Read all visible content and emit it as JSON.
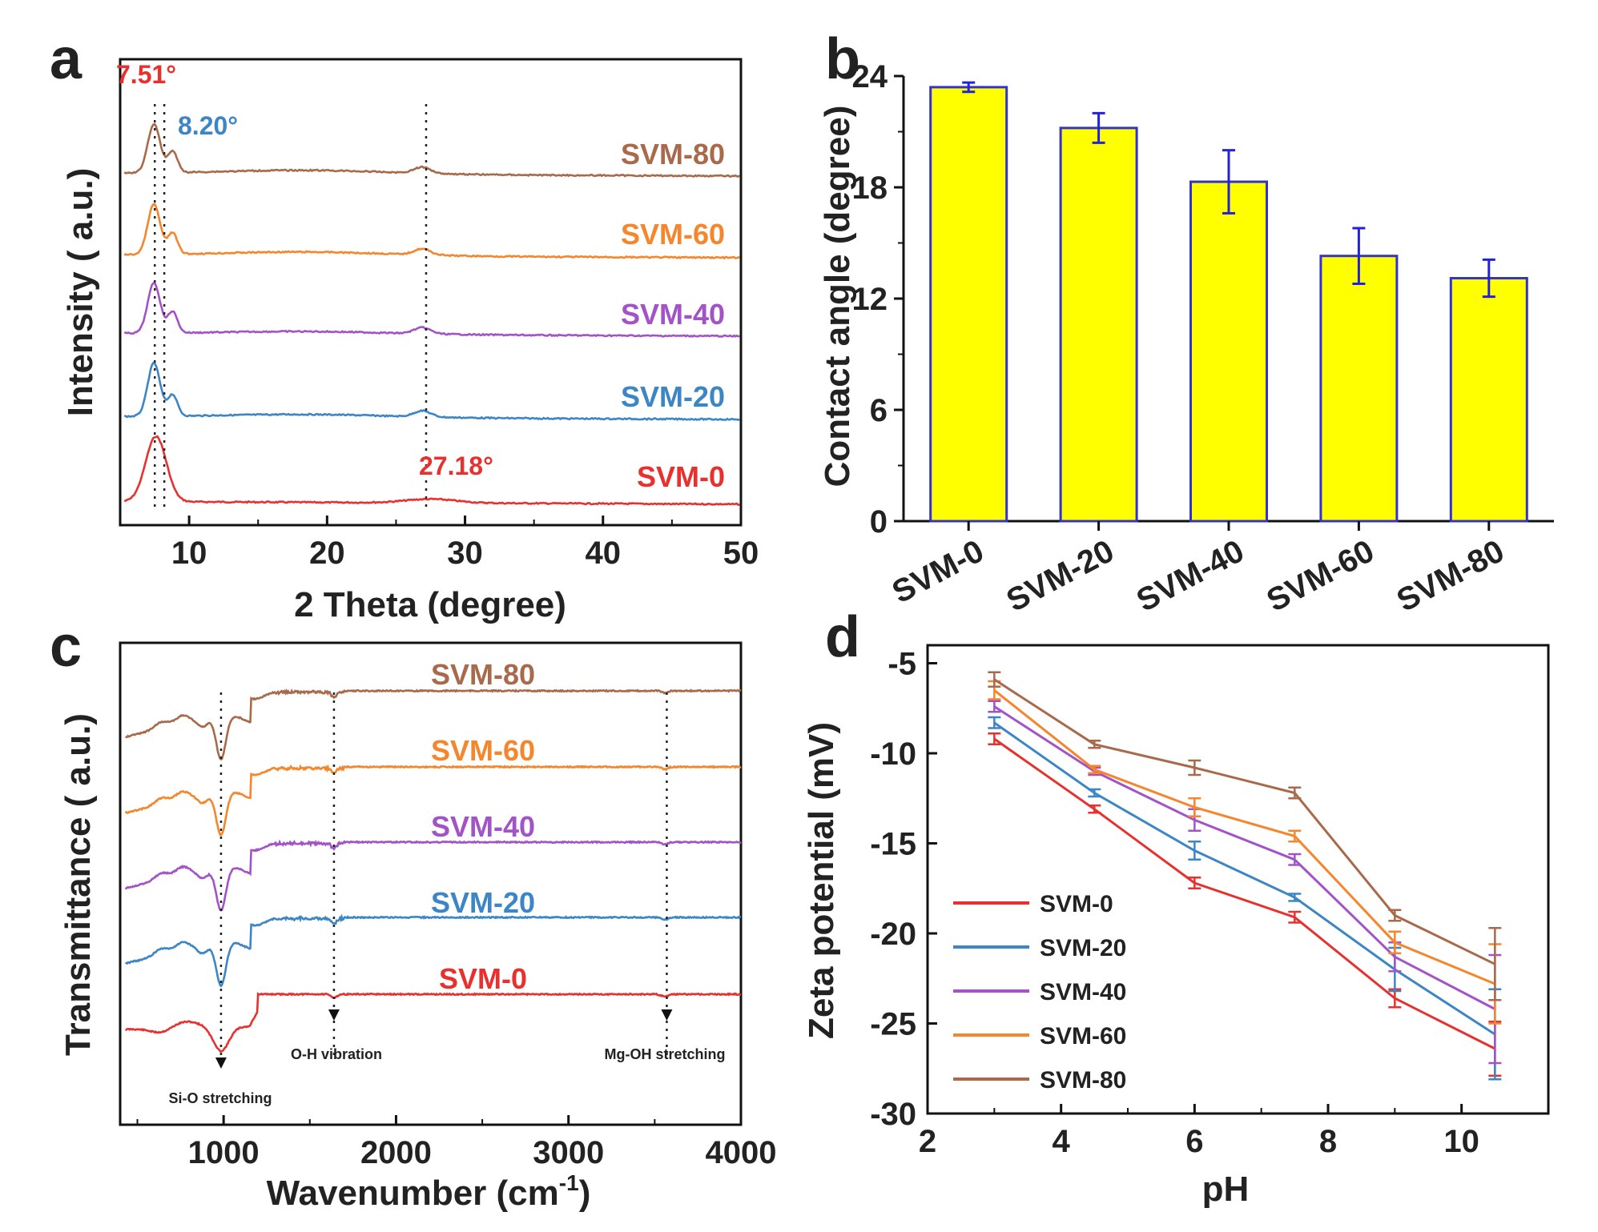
{
  "chart_data": [
    {
      "panel": "a",
      "type": "line",
      "title": "",
      "xlabel": "2 Theta (degree)",
      "ylabel": "Intensity ( a.u.)",
      "xlim": [
        5,
        50
      ],
      "xticks": [
        "10",
        "20",
        "30",
        "40",
        "50"
      ],
      "peak_markers": [
        {
          "x": 7.51,
          "label": "7.51°",
          "color": "#e8312f"
        },
        {
          "x": 8.2,
          "label": "8.20°",
          "color": "#3d86c6"
        },
        {
          "x": 27.18,
          "label": "27.18°",
          "color": "#e8312f"
        }
      ],
      "series": [
        {
          "name": "SVM-0",
          "color": "#e8312f",
          "offset": 0,
          "peaks": [
            {
              "x": 7.6,
              "h": 4.3,
              "w": 0.75
            },
            {
              "x": 27.5,
              "h": 0.25,
              "w": 1.8
            }
          ]
        },
        {
          "name": "SVM-20",
          "color": "#3d86c6",
          "offset": 1,
          "peaks": [
            {
              "x": 7.45,
              "h": 3.5,
              "w": 0.45
            },
            {
              "x": 8.8,
              "h": 1.4,
              "w": 0.35
            },
            {
              "x": 18.5,
              "h": 0.2,
              "w": 6.0
            },
            {
              "x": 26.9,
              "h": 0.4,
              "w": 0.6
            }
          ]
        },
        {
          "name": "SVM-40",
          "color": "#a353c8",
          "offset": 2,
          "peaks": [
            {
              "x": 7.45,
              "h": 3.3,
              "w": 0.45
            },
            {
              "x": 8.8,
              "h": 1.4,
              "w": 0.35
            },
            {
              "x": 18.5,
              "h": 0.18,
              "w": 6.0
            },
            {
              "x": 26.9,
              "h": 0.4,
              "w": 0.6
            }
          ]
        },
        {
          "name": "SVM-60",
          "color": "#f5862c",
          "offset": 3,
          "peaks": [
            {
              "x": 7.45,
              "h": 3.3,
              "w": 0.45
            },
            {
              "x": 8.8,
              "h": 1.4,
              "w": 0.35
            },
            {
              "x": 18.5,
              "h": 0.25,
              "w": 6.0
            },
            {
              "x": 26.9,
              "h": 0.4,
              "w": 0.6
            }
          ]
        },
        {
          "name": "SVM-80",
          "color": "#a86a4a",
          "offset": 4,
          "peaks": [
            {
              "x": 7.45,
              "h": 3.2,
              "w": 0.45
            },
            {
              "x": 8.8,
              "h": 1.4,
              "w": 0.35
            },
            {
              "x": 18.5,
              "h": 0.25,
              "w": 6.0
            },
            {
              "x": 26.9,
              "h": 0.4,
              "w": 0.6
            }
          ]
        }
      ]
    },
    {
      "panel": "b",
      "type": "bar",
      "title": "",
      "xlabel": "",
      "ylabel": "Contact angle (degree)",
      "ylim": [
        0,
        24
      ],
      "yticks": [
        "0",
        "6",
        "12",
        "18",
        "24"
      ],
      "categories": [
        "SVM-0",
        "SVM-20",
        "SVM-40",
        "SVM-60",
        "SVM-80"
      ],
      "values": [
        23.4,
        21.2,
        18.3,
        14.3,
        13.1
      ],
      "errors": [
        0.25,
        0.8,
        1.7,
        1.5,
        1.0
      ],
      "bar_color": "#ffff00",
      "edge_color": "#3333cc"
    },
    {
      "panel": "c",
      "type": "line",
      "title": "",
      "xlabel": "Wavenumber (cm",
      "xlabel_sup": "-1",
      "xlabel_end": ")",
      "ylabel": "Transmittance ( a.u.)",
      "xlim": [
        400,
        4000
      ],
      "xticks": [
        "1000",
        "2000",
        "3000",
        "4000"
      ],
      "band_markers": [
        {
          "x": 985,
          "label": "Si-O stretching"
        },
        {
          "x": 1640,
          "label": "O-H vibration"
        },
        {
          "x": 3570,
          "label": "Mg-OH stretching"
        }
      ],
      "series": [
        {
          "name": "SVM-0",
          "color": "#e8312f",
          "offset": 0
        },
        {
          "name": "SVM-20",
          "color": "#3d86c6",
          "offset": 1
        },
        {
          "name": "SVM-40",
          "color": "#a353c8",
          "offset": 2
        },
        {
          "name": "SVM-60",
          "color": "#f5862c",
          "offset": 3
        },
        {
          "name": "SVM-80",
          "color": "#a86a4a",
          "offset": 4
        }
      ]
    },
    {
      "panel": "d",
      "type": "line",
      "title": "",
      "xlabel": "pH",
      "ylabel": "Zeta potential (mV)",
      "xlim": [
        2,
        11.3
      ],
      "ylim": [
        -30,
        -4
      ],
      "xticks": [
        "2",
        "4",
        "6",
        "8",
        "10"
      ],
      "yticks": [
        "-5",
        "-10",
        "-15",
        "-20",
        "-25",
        "-30"
      ],
      "x": [
        3,
        4.5,
        6,
        7.5,
        9,
        10.5
      ],
      "series": [
        {
          "name": "SVM-0",
          "color": "#e8312f",
          "values": [
            -9.2,
            -13.1,
            -17.2,
            -19.1,
            -23.6,
            -26.4
          ],
          "errors": [
            0.3,
            0.2,
            0.3,
            0.3,
            0.5,
            1.5
          ]
        },
        {
          "name": "SVM-20",
          "color": "#3d86c6",
          "values": [
            -8.3,
            -12.2,
            -15.4,
            -18.0,
            -22.0,
            -25.6
          ],
          "errors": [
            0.3,
            0.2,
            0.5,
            0.2,
            1.2,
            2.5
          ]
        },
        {
          "name": "SVM-40",
          "color": "#a353c8",
          "values": [
            -7.4,
            -11.0,
            -13.7,
            -15.9,
            -21.3,
            -24.2
          ],
          "errors": [
            0.3,
            0.2,
            0.6,
            0.3,
            0.8,
            3.0
          ]
        },
        {
          "name": "SVM-60",
          "color": "#f5862c",
          "values": [
            -6.5,
            -10.9,
            -13.0,
            -14.6,
            -20.5,
            -22.8
          ],
          "errors": [
            0.5,
            0.2,
            0.5,
            0.3,
            0.6,
            2.2
          ]
        },
        {
          "name": "SVM-80",
          "color": "#a86a4a",
          "values": [
            -5.9,
            -9.5,
            -10.8,
            -12.2,
            -19.0,
            -21.7
          ],
          "errors": [
            0.4,
            0.2,
            0.4,
            0.3,
            0.3,
            2.0
          ]
        }
      ]
    }
  ]
}
